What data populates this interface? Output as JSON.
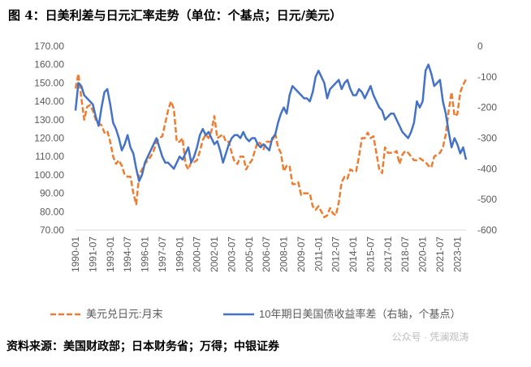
{
  "chart_data": {
    "type": "line",
    "title": "图 4：日美利差与日元汇率走势（单位：个基点；日元/美元）",
    "source": "资料来源：美国财政部；日本财务省；万得；中银证券",
    "watermark": "公众号 · 凭澜观涛",
    "categories": [
      "1990-01",
      null,
      null,
      null,
      null,
      null,
      "1991-07",
      null,
      null,
      null,
      null,
      null,
      "1993-01",
      null,
      null,
      null,
      null,
      null,
      "1994-07",
      null,
      null,
      null,
      null,
      null,
      "1996-01",
      null,
      null,
      null,
      null,
      null,
      "1997-07",
      null,
      null,
      null,
      null,
      null,
      "1999-01",
      null,
      null,
      null,
      null,
      null,
      "2000-07",
      null,
      null,
      null,
      null,
      null,
      "2002-01",
      null,
      null,
      null,
      null,
      null,
      "2003-07",
      null,
      null,
      null,
      null,
      null,
      "2005-01",
      null,
      null,
      null,
      null,
      null,
      "2006-07",
      null,
      null,
      null,
      null,
      null,
      "2008-01",
      null,
      null,
      null,
      null,
      null,
      "2009-07",
      null,
      null,
      null,
      null,
      null,
      "2011-01",
      null,
      null,
      null,
      null,
      null,
      "2012-07",
      null,
      null,
      null,
      null,
      null,
      "2014-01",
      null,
      null,
      null,
      null,
      null,
      "2015-07",
      null,
      null,
      null,
      null,
      null,
      "2017-01",
      null,
      null,
      null,
      null,
      null,
      "2018-07",
      null,
      null,
      null,
      null,
      null,
      "2020-01",
      null,
      null,
      null,
      null,
      null,
      "2021-07",
      null,
      null,
      null,
      null,
      null,
      "2023-01",
      null,
      null,
      null
    ],
    "series": [
      {
        "name": "美元兑日元:月末",
        "color": "#ED7D31",
        "dashed": true,
        "axis": "y",
        "values": [
          147,
          155,
          142,
          130,
          137,
          138,
          135,
          130,
          128,
          127,
          123,
          124,
          118,
          110,
          106,
          108,
          105,
          100,
          99,
          99,
          90,
          84,
          100,
          103,
          106,
          108,
          110,
          113,
          118,
          120,
          121,
          128,
          135,
          140,
          136,
          118,
          118,
          120,
          106,
          103,
          107,
          107,
          108,
          113,
          119,
          122,
          120,
          124,
          132,
          120,
          121,
          122,
          118,
          118,
          112,
          107,
          106,
          110,
          110,
          103,
          106,
          108,
          113,
          118,
          117,
          114,
          118,
          118,
          118,
          123,
          115,
          112,
          102,
          105,
          105,
          95,
          95,
          96,
          89,
          90,
          90,
          90,
          83,
          81,
          83,
          80,
          77,
          78,
          82,
          79,
          78,
          85,
          96,
          99,
          98,
          103,
          102,
          102,
          110,
          120,
          120,
          123,
          120,
          121,
          112,
          103,
          101,
          115,
          112,
          112,
          112,
          113,
          106,
          111,
          113,
          112,
          110,
          108,
          108,
          109,
          108,
          107,
          105,
          104,
          110,
          111,
          112,
          115,
          122,
          135,
          145,
          132,
          133,
          145,
          149,
          152
        ]
      },
      {
        "name": "10年期日美国债收益率差（右轴，个基点）",
        "color": "#4472C4",
        "dashed": false,
        "axis": "y2",
        "values": [
          -210,
          -120,
          -130,
          -160,
          -170,
          -180,
          -190,
          -230,
          -260,
          -200,
          -150,
          -140,
          -190,
          -250,
          -270,
          -300,
          -340,
          -320,
          -290,
          -330,
          -350,
          -400,
          -440,
          -420,
          -380,
          -360,
          -340,
          -320,
          -300,
          -330,
          -360,
          -380,
          -380,
          -390,
          -400,
          -380,
          -360,
          -370,
          -350,
          -330,
          -380,
          -360,
          -330,
          -290,
          -270,
          -290,
          -280,
          -300,
          -320,
          -310,
          -340,
          -380,
          -350,
          -320,
          -300,
          -290,
          -290,
          -300,
          -280,
          -300,
          -310,
          -300,
          -300,
          -320,
          -330,
          -320,
          -330,
          -340,
          -300,
          -290,
          -250,
          -220,
          -200,
          -220,
          -160,
          -130,
          -140,
          -150,
          -160,
          -170,
          -170,
          -180,
          -150,
          -100,
          -80,
          -100,
          -120,
          -170,
          -140,
          -130,
          -120,
          -110,
          -140,
          -120,
          -110,
          -140,
          -160,
          -160,
          -140,
          -150,
          -170,
          -150,
          -130,
          -160,
          -180,
          -200,
          -210,
          -240,
          -230,
          -220,
          -220,
          -240,
          -260,
          -280,
          -290,
          -300,
          -280,
          -250,
          -180,
          -200,
          -180,
          -80,
          -60,
          -90,
          -130,
          -120,
          -110,
          -180,
          -220,
          -280,
          -330,
          -300,
          -320,
          -350,
          -330,
          -370
        ]
      }
    ],
    "ylim": [
      70,
      170
    ],
    "yticks": [
      {
        "value": 70,
        "label": "70.00"
      },
      {
        "value": 80,
        "label": "80.00"
      },
      {
        "value": 90,
        "label": "90.00"
      },
      {
        "value": 100,
        "label": "100.00"
      },
      {
        "value": 110,
        "label": "110.00"
      },
      {
        "value": 120,
        "label": "120.00"
      },
      {
        "value": 130,
        "label": "130.00"
      },
      {
        "value": 140,
        "label": "140.00"
      },
      {
        "value": 150,
        "label": "150.00"
      },
      {
        "value": 160,
        "label": "160.00"
      },
      {
        "value": 170,
        "label": "170.00"
      }
    ],
    "y2lim": [
      -600,
      0
    ],
    "y2ticks": [
      -600,
      -500,
      -400,
      -300,
      -200,
      -100,
      0
    ],
    "legend": "bottom",
    "grid": false
  }
}
